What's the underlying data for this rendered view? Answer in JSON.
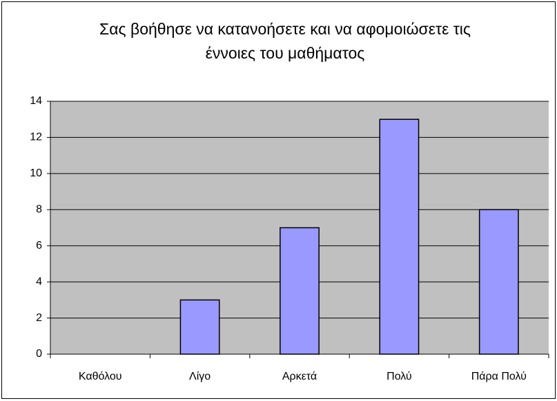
{
  "chart_data": {
    "type": "bar",
    "title": [
      "Σας βοήθησε να κατανοήσετε και να αφομοιώσετε τις",
      "έννοιες του μαθήματος"
    ],
    "categories": [
      "Καθόλου",
      "Λίγο",
      "Αρκετά",
      "Πολύ",
      "Πάρα Πολύ"
    ],
    "values": [
      0,
      3,
      7,
      13,
      8
    ],
    "color": "#9999ff",
    "plot_background": "#c0c0c0",
    "ylim": [
      0,
      14
    ],
    "yticks": [
      0,
      2,
      4,
      6,
      8,
      10,
      12,
      14
    ],
    "grid": true
  }
}
